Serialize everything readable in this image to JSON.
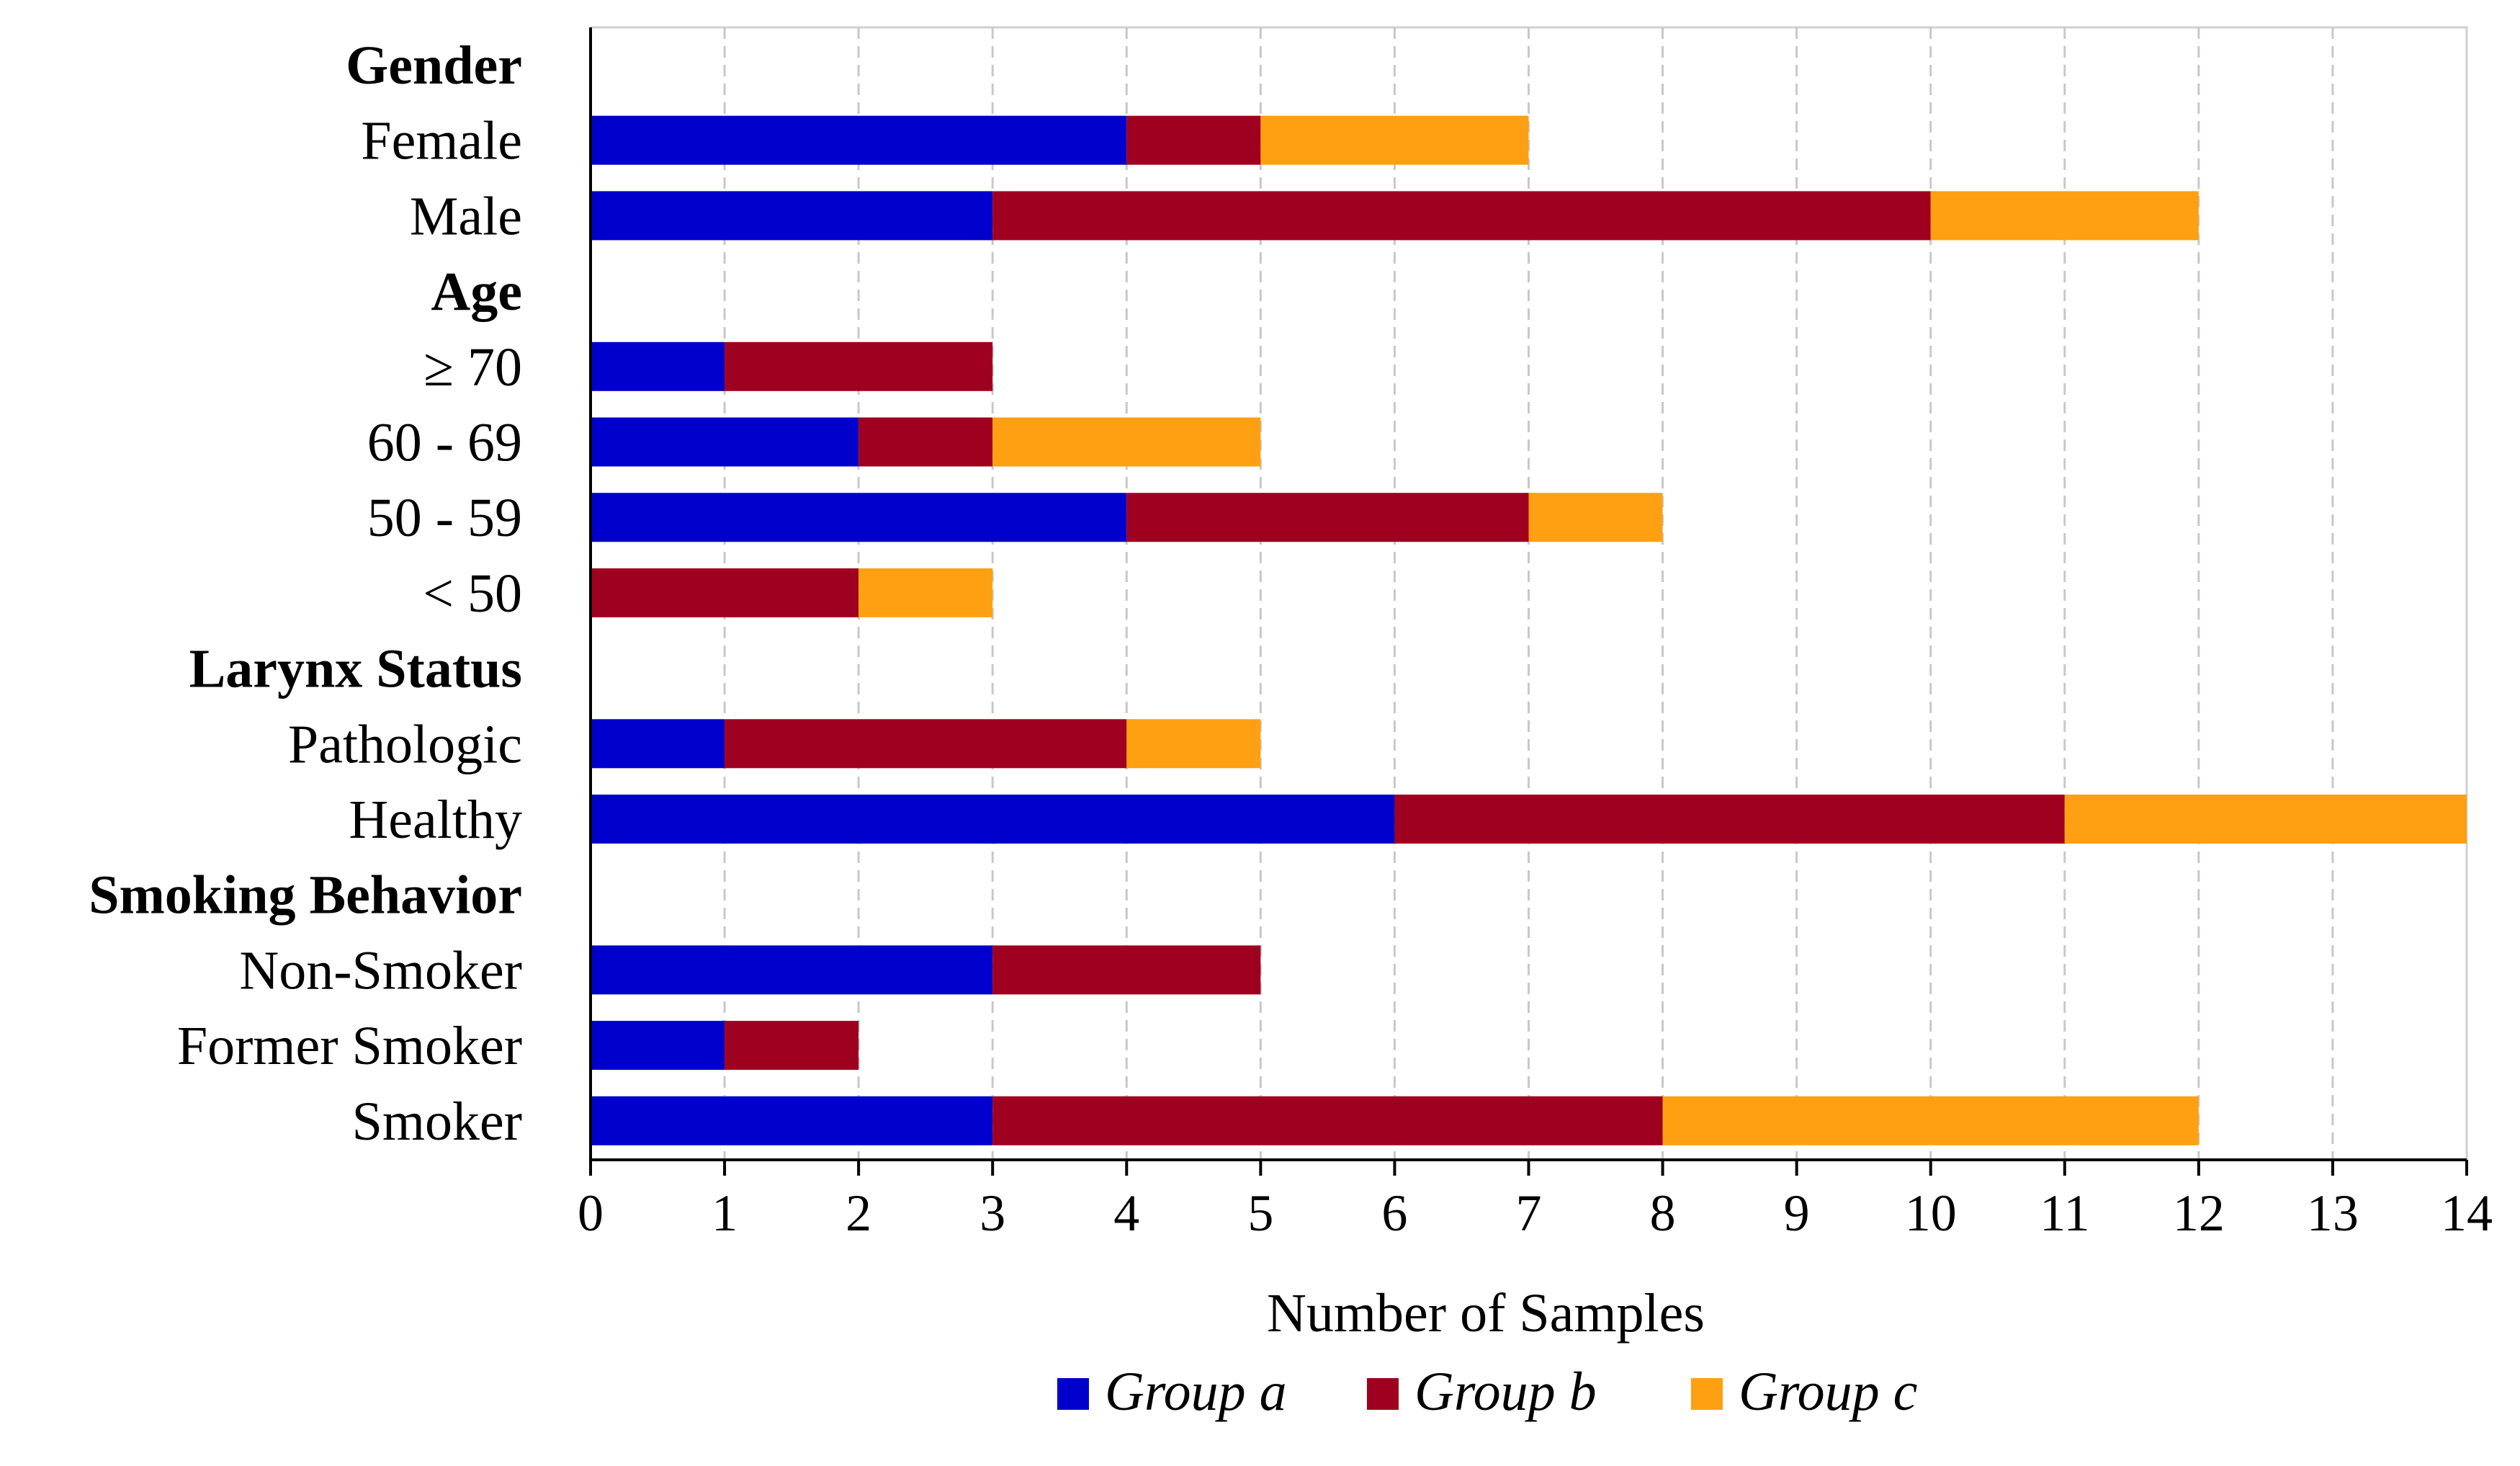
{
  "chart_data": {
    "type": "bar",
    "orientation": "horizontal",
    "stacked": true,
    "xlabel": "Number of Samples",
    "xlim": [
      0,
      14
    ],
    "x_ticks": [
      0,
      1,
      2,
      3,
      4,
      5,
      6,
      7,
      8,
      9,
      10,
      11,
      12,
      13,
      14
    ],
    "grid": "vertical dashed",
    "legend_position": "bottom",
    "rows": [
      {
        "label": "Gender",
        "header": true
      },
      {
        "label": "Female",
        "values": [
          4,
          1,
          2
        ]
      },
      {
        "label": "Male",
        "values": [
          3,
          7,
          2
        ]
      },
      {
        "label": "Age",
        "header": true
      },
      {
        "label": "≥ 70",
        "values": [
          1,
          2,
          0
        ]
      },
      {
        "label": "60 - 69",
        "values": [
          2,
          1,
          2
        ]
      },
      {
        "label": "50 - 59",
        "values": [
          4,
          3,
          1
        ]
      },
      {
        "label": "< 50",
        "values": [
          0,
          2,
          1
        ]
      },
      {
        "label": "Larynx Status",
        "header": true
      },
      {
        "label": "Pathologic",
        "values": [
          1,
          3,
          1
        ]
      },
      {
        "label": "Healthy",
        "values": [
          6,
          5,
          3
        ]
      },
      {
        "label": "Smoking Behavior",
        "header": true
      },
      {
        "label": "Non-Smoker",
        "values": [
          3,
          2,
          0
        ]
      },
      {
        "label": "Former Smoker",
        "values": [
          1,
          1,
          0
        ]
      },
      {
        "label": "Smoker",
        "values": [
          3,
          5,
          4
        ]
      }
    ],
    "series": [
      {
        "name": "Group a",
        "color": "#0000CC"
      },
      {
        "name": "Group b",
        "color": "#A00020"
      },
      {
        "name": "Group c",
        "color": "#FFA012"
      }
    ]
  }
}
